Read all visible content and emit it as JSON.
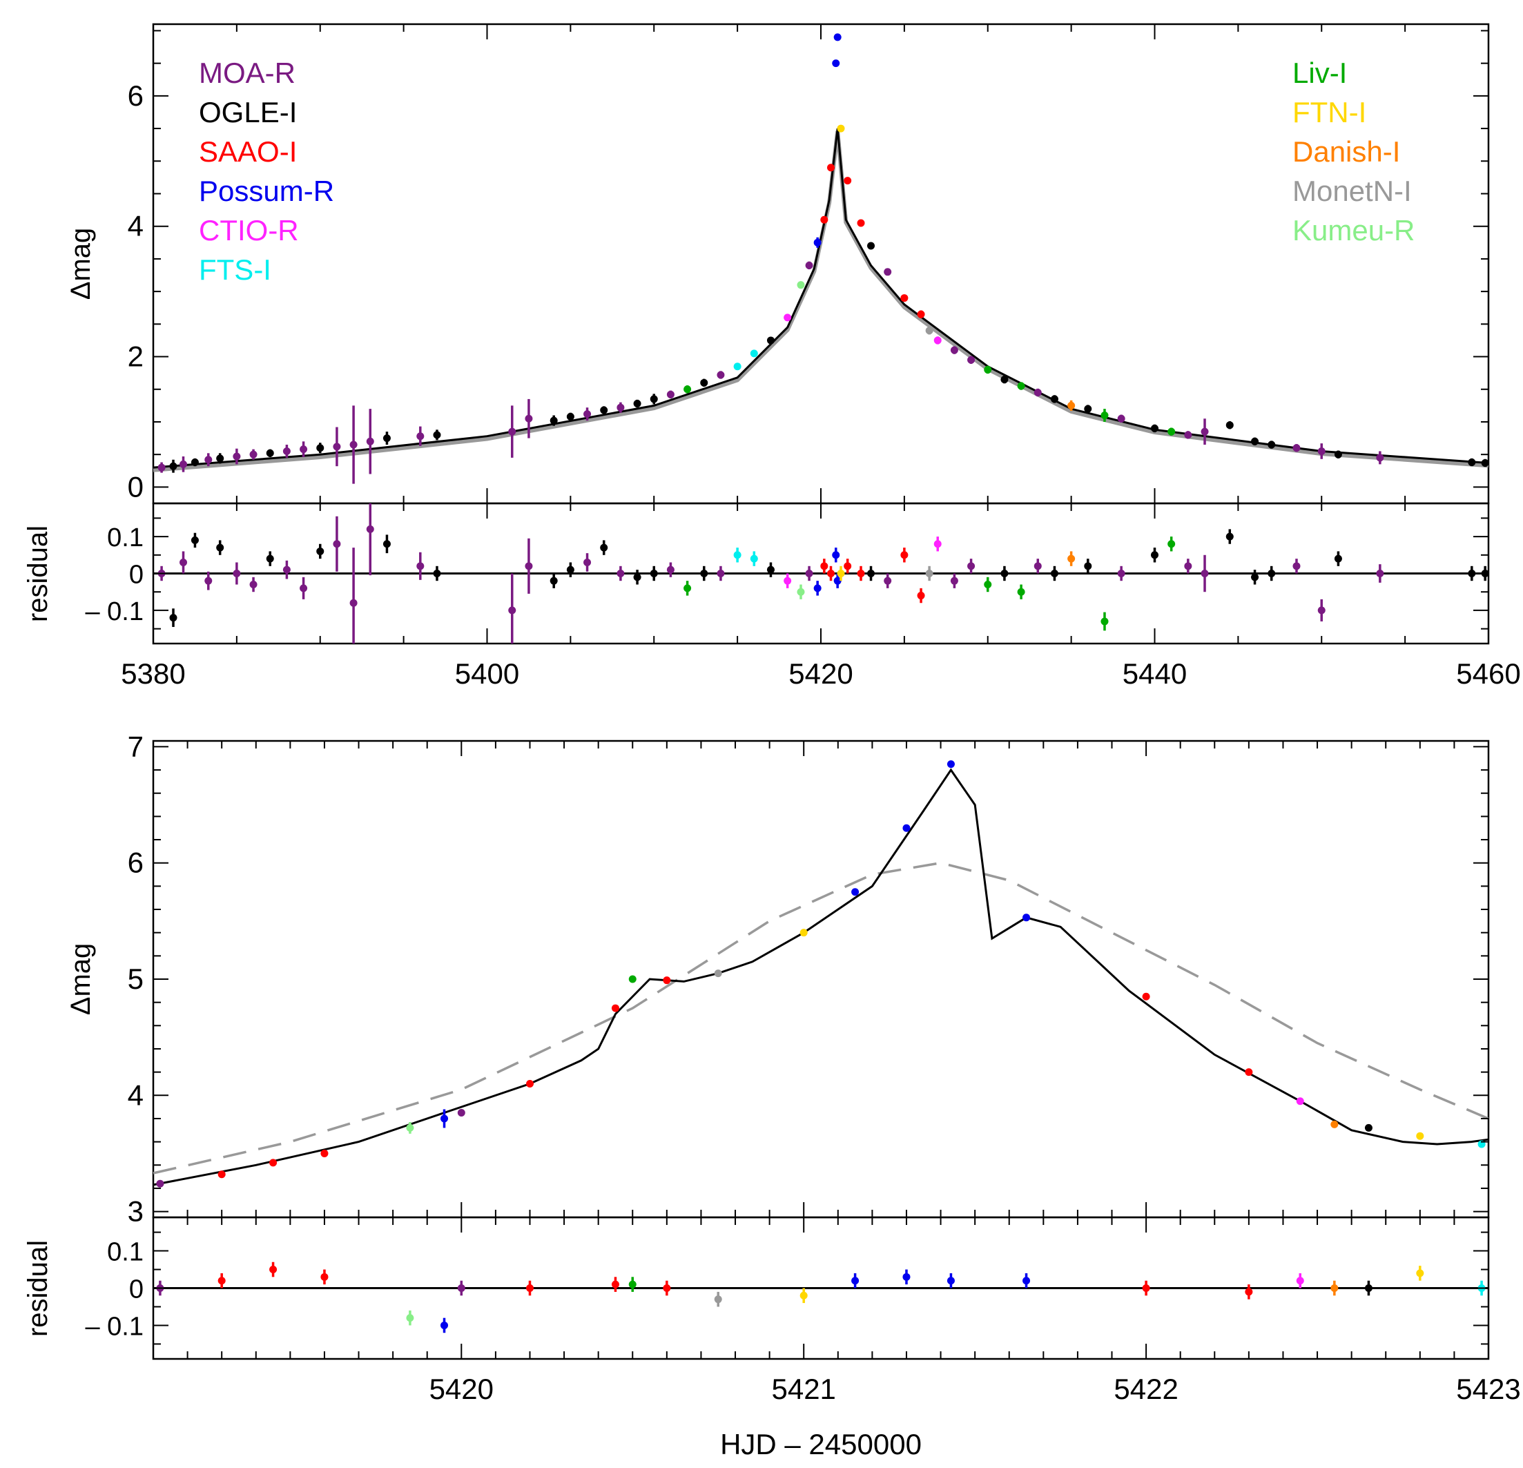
{
  "chart_data": [
    {
      "id": "top",
      "type": "scatter",
      "title": "",
      "ylabel": "Δmag",
      "residual_ylabel": "residual",
      "xlim": [
        5380,
        5460
      ],
      "ylim": [
        -0.25,
        7.1
      ],
      "residual_ylim": [
        -0.19,
        0.19
      ],
      "x_ticks": [
        "5380",
        "5400",
        "5420",
        "5440",
        "5460"
      ],
      "x_tick_values": [
        5380,
        5400,
        5420,
        5440,
        5460
      ],
      "y_ticks": [
        "0",
        "2",
        "4",
        "6"
      ],
      "y_tick_values": [
        0,
        2,
        4,
        6
      ],
      "residual_ticks": [
        "0.1",
        "0",
        "– 0.1"
      ],
      "residual_tick_values": [
        0.1,
        0,
        -0.1
      ],
      "grid": false,
      "legend_left": [
        "MOA-R",
        "OGLE-I",
        "SAAO-I",
        "Possum-R",
        "CTIO-R",
        "FTS-I"
      ],
      "legend_right": [
        "Liv-I",
        "FTN-I",
        "Danish-I",
        "MonetN-I",
        "Kumeu-R"
      ],
      "legend_placement": "top-left and top-right",
      "model": {
        "peak_x": 5421.0,
        "baseline": [
          [
            5380,
            0.3
          ],
          [
            5390,
            0.5
          ],
          [
            5400,
            0.78
          ],
          [
            5410,
            1.25
          ],
          [
            5415,
            1.68
          ],
          [
            5418,
            2.45
          ],
          [
            5419.6,
            3.35
          ],
          [
            5420.5,
            4.4
          ],
          [
            5421.0,
            5.5
          ],
          [
            5421.5,
            4.1
          ],
          [
            5423,
            3.4
          ],
          [
            5425,
            2.8
          ],
          [
            5430,
            1.85
          ],
          [
            5435,
            1.2
          ],
          [
            5440,
            0.88
          ],
          [
            5450,
            0.55
          ],
          [
            5460,
            0.37
          ]
        ]
      },
      "points": [
        {
          "x": 5380.5,
          "y": 0.3,
          "e": 0.08,
          "r": 0.0,
          "s": "MOA-R"
        },
        {
          "x": 5381.2,
          "y": 0.32,
          "e": 0.1,
          "r": -0.12,
          "s": "OGLE-I"
        },
        {
          "x": 5381.8,
          "y": 0.35,
          "e": 0.12,
          "r": 0.03,
          "s": "MOA-R"
        },
        {
          "x": 5382.5,
          "y": 0.38,
          "e": 0.06,
          "r": 0.09,
          "s": "OGLE-I"
        },
        {
          "x": 5383.3,
          "y": 0.42,
          "e": 0.1,
          "r": -0.02,
          "s": "MOA-R"
        },
        {
          "x": 5384.0,
          "y": 0.44,
          "e": 0.08,
          "r": 0.07,
          "s": "OGLE-I"
        },
        {
          "x": 5385.0,
          "y": 0.47,
          "e": 0.12,
          "r": 0.0,
          "s": "MOA-R"
        },
        {
          "x": 5386.0,
          "y": 0.5,
          "e": 0.08,
          "r": -0.03,
          "s": "MOA-R"
        },
        {
          "x": 5387.0,
          "y": 0.52,
          "e": 0.06,
          "r": 0.04,
          "s": "OGLE-I"
        },
        {
          "x": 5388.0,
          "y": 0.55,
          "e": 0.1,
          "r": 0.01,
          "s": "MOA-R"
        },
        {
          "x": 5389.0,
          "y": 0.58,
          "e": 0.12,
          "r": -0.04,
          "s": "MOA-R"
        },
        {
          "x": 5390.0,
          "y": 0.6,
          "e": 0.08,
          "r": 0.06,
          "s": "OGLE-I"
        },
        {
          "x": 5391.0,
          "y": 0.62,
          "e": 0.3,
          "r": 0.08,
          "s": "MOA-R"
        },
        {
          "x": 5392.0,
          "y": 0.65,
          "e": 0.6,
          "r": -0.08,
          "s": "MOA-R"
        },
        {
          "x": 5393.0,
          "y": 0.7,
          "e": 0.5,
          "r": 0.12,
          "s": "MOA-R"
        },
        {
          "x": 5394.0,
          "y": 0.75,
          "e": 0.1,
          "r": 0.08,
          "s": "OGLE-I"
        },
        {
          "x": 5396.0,
          "y": 0.78,
          "e": 0.15,
          "r": 0.02,
          "s": "MOA-R"
        },
        {
          "x": 5397.0,
          "y": 0.8,
          "e": 0.08,
          "r": 0.0,
          "s": "OGLE-I"
        },
        {
          "x": 5401.5,
          "y": 0.85,
          "e": 0.4,
          "r": -0.1,
          "s": "MOA-R"
        },
        {
          "x": 5402.5,
          "y": 1.05,
          "e": 0.3,
          "r": 0.02,
          "s": "MOA-R"
        },
        {
          "x": 5404.0,
          "y": 1.02,
          "e": 0.08,
          "r": -0.02,
          "s": "OGLE-I"
        },
        {
          "x": 5405.0,
          "y": 1.08,
          "e": 0.06,
          "r": 0.01,
          "s": "OGLE-I"
        },
        {
          "x": 5406.0,
          "y": 1.12,
          "e": 0.1,
          "r": 0.03,
          "s": "MOA-R"
        },
        {
          "x": 5407.0,
          "y": 1.18,
          "e": 0.06,
          "r": 0.07,
          "s": "OGLE-I"
        },
        {
          "x": 5408.0,
          "y": 1.22,
          "e": 0.08,
          "r": 0.0,
          "s": "MOA-R"
        },
        {
          "x": 5409.0,
          "y": 1.28,
          "e": 0.06,
          "r": -0.01,
          "s": "OGLE-I"
        },
        {
          "x": 5410.0,
          "y": 1.35,
          "e": 0.08,
          "r": 0.0,
          "s": "OGLE-I"
        },
        {
          "x": 5411.0,
          "y": 1.42,
          "e": 0.06,
          "r": 0.01,
          "s": "MOA-R"
        },
        {
          "x": 5412.0,
          "y": 1.5,
          "e": 0.06,
          "r": -0.04,
          "s": "Liv-I"
        },
        {
          "x": 5413.0,
          "y": 1.6,
          "e": 0.06,
          "r": 0.0,
          "s": "OGLE-I"
        },
        {
          "x": 5414.0,
          "y": 1.72,
          "e": 0.06,
          "r": 0.0,
          "s": "MOA-R"
        },
        {
          "x": 5415.0,
          "y": 1.85,
          "e": 0.05,
          "r": 0.05,
          "s": "FTS-I"
        },
        {
          "x": 5416.0,
          "y": 2.05,
          "e": 0.05,
          "r": 0.04,
          "s": "FTS-I"
        },
        {
          "x": 5417.0,
          "y": 2.25,
          "e": 0.05,
          "r": 0.01,
          "s": "OGLE-I"
        },
        {
          "x": 5418.0,
          "y": 2.6,
          "e": 0.05,
          "r": -0.02,
          "s": "CTIO-R"
        },
        {
          "x": 5418.8,
          "y": 3.1,
          "e": 0.05,
          "r": -0.05,
          "s": "Kumeu-R"
        },
        {
          "x": 5419.3,
          "y": 3.4,
          "e": 0.06,
          "r": 0.0,
          "s": "MOA-R"
        },
        {
          "x": 5419.8,
          "y": 3.75,
          "e": 0.08,
          "r": -0.04,
          "s": "Possum-R"
        },
        {
          "x": 5420.2,
          "y": 4.1,
          "e": 0.04,
          "r": 0.02,
          "s": "SAAO-I"
        },
        {
          "x": 5420.6,
          "y": 4.9,
          "e": 0.04,
          "r": 0.0,
          "s": "SAAO-I"
        },
        {
          "x": 5420.9,
          "y": 6.5,
          "e": 0.04,
          "r": 0.05,
          "s": "Possum-R"
        },
        {
          "x": 5421.0,
          "y": 6.9,
          "e": 0.03,
          "r": -0.02,
          "s": "Possum-R"
        },
        {
          "x": 5421.2,
          "y": 5.5,
          "e": 0.04,
          "r": 0.0,
          "s": "FTN-I"
        },
        {
          "x": 5421.6,
          "y": 4.7,
          "e": 0.04,
          "r": 0.02,
          "s": "SAAO-I"
        },
        {
          "x": 5422.4,
          "y": 4.05,
          "e": 0.04,
          "r": 0.0,
          "s": "SAAO-I"
        },
        {
          "x": 5423.0,
          "y": 3.7,
          "e": 0.04,
          "r": 0.0,
          "s": "OGLE-I"
        },
        {
          "x": 5424.0,
          "y": 3.3,
          "e": 0.05,
          "r": -0.02,
          "s": "MOA-R"
        },
        {
          "x": 5425.0,
          "y": 2.9,
          "e": 0.05,
          "r": 0.05,
          "s": "SAAO-I"
        },
        {
          "x": 5426.0,
          "y": 2.65,
          "e": 0.06,
          "r": -0.06,
          "s": "SAAO-I"
        },
        {
          "x": 5426.5,
          "y": 2.4,
          "e": 0.06,
          "r": 0.0,
          "s": "MonetN-I"
        },
        {
          "x": 5427.0,
          "y": 2.25,
          "e": 0.06,
          "r": 0.08,
          "s": "CTIO-R"
        },
        {
          "x": 5428.0,
          "y": 2.1,
          "e": 0.06,
          "r": -0.02,
          "s": "MOA-R"
        },
        {
          "x": 5429.0,
          "y": 1.95,
          "e": 0.06,
          "r": 0.02,
          "s": "MOA-R"
        },
        {
          "x": 5430.0,
          "y": 1.8,
          "e": 0.06,
          "r": -0.03,
          "s": "Liv-I"
        },
        {
          "x": 5431.0,
          "y": 1.65,
          "e": 0.06,
          "r": 0.0,
          "s": "OGLE-I"
        },
        {
          "x": 5432.0,
          "y": 1.55,
          "e": 0.06,
          "r": -0.05,
          "s": "Liv-I"
        },
        {
          "x": 5433.0,
          "y": 1.45,
          "e": 0.06,
          "r": 0.02,
          "s": "MOA-R"
        },
        {
          "x": 5434.0,
          "y": 1.35,
          "e": 0.06,
          "r": 0.0,
          "s": "OGLE-I"
        },
        {
          "x": 5435.0,
          "y": 1.25,
          "e": 0.08,
          "r": 0.04,
          "s": "Danish-I"
        },
        {
          "x": 5436.0,
          "y": 1.2,
          "e": 0.06,
          "r": 0.02,
          "s": "OGLE-I"
        },
        {
          "x": 5437.0,
          "y": 1.1,
          "e": 0.1,
          "r": -0.13,
          "s": "Liv-I"
        },
        {
          "x": 5438.0,
          "y": 1.05,
          "e": 0.06,
          "r": 0.0,
          "s": "MOA-R"
        },
        {
          "x": 5440.0,
          "y": 0.9,
          "e": 0.06,
          "r": 0.05,
          "s": "OGLE-I"
        },
        {
          "x": 5441.0,
          "y": 0.85,
          "e": 0.06,
          "r": 0.08,
          "s": "Liv-I"
        },
        {
          "x": 5442.0,
          "y": 0.8,
          "e": 0.06,
          "r": 0.02,
          "s": "MOA-R"
        },
        {
          "x": 5443.0,
          "y": 0.85,
          "e": 0.2,
          "r": 0.0,
          "s": "MOA-R"
        },
        {
          "x": 5444.5,
          "y": 0.95,
          "e": 0.06,
          "r": 0.1,
          "s": "OGLE-I"
        },
        {
          "x": 5446.0,
          "y": 0.7,
          "e": 0.06,
          "r": -0.01,
          "s": "OGLE-I"
        },
        {
          "x": 5447.0,
          "y": 0.65,
          "e": 0.06,
          "r": 0.0,
          "s": "OGLE-I"
        },
        {
          "x": 5448.5,
          "y": 0.6,
          "e": 0.06,
          "r": 0.02,
          "s": "MOA-R"
        },
        {
          "x": 5450.0,
          "y": 0.55,
          "e": 0.12,
          "r": -0.1,
          "s": "MOA-R"
        },
        {
          "x": 5451.0,
          "y": 0.5,
          "e": 0.06,
          "r": 0.04,
          "s": "OGLE-I"
        },
        {
          "x": 5453.5,
          "y": 0.45,
          "e": 0.1,
          "r": 0.0,
          "s": "MOA-R"
        },
        {
          "x": 5459.0,
          "y": 0.38,
          "e": 0.06,
          "r": 0.0,
          "s": "OGLE-I"
        },
        {
          "x": 5459.8,
          "y": 0.37,
          "e": 0.06,
          "r": 0.0,
          "s": "OGLE-I"
        }
      ]
    },
    {
      "id": "bottom",
      "type": "scatter",
      "title": "",
      "ylabel": "Δmag",
      "residual_ylabel": "residual",
      "xlabel": "HJD – 2450000",
      "xlim": [
        5419.1,
        5423.0
      ],
      "ylim": [
        2.95,
        7.05
      ],
      "residual_ylim": [
        -0.19,
        0.19
      ],
      "x_ticks": [
        "5420",
        "5421",
        "5422",
        "5423"
      ],
      "x_tick_values": [
        5420,
        5421,
        5422,
        5423
      ],
      "y_ticks": [
        "3",
        "4",
        "5",
        "6",
        "7"
      ],
      "y_tick_values": [
        3,
        4,
        5,
        6,
        7
      ],
      "residual_ticks": [
        "0.1",
        "0",
        "– 0.1"
      ],
      "residual_tick_values": [
        0.1,
        0,
        -0.1
      ],
      "grid": false,
      "model": [
        [
          5419.1,
          3.23
        ],
        [
          5419.4,
          3.4
        ],
        [
          5419.7,
          3.6
        ],
        [
          5419.95,
          3.85
        ],
        [
          5420.2,
          4.1
        ],
        [
          5420.35,
          4.3
        ],
        [
          5420.4,
          4.4
        ],
        [
          5420.45,
          4.7
        ],
        [
          5420.55,
          5.0
        ],
        [
          5420.65,
          4.98
        ],
        [
          5420.75,
          5.05
        ],
        [
          5420.85,
          5.15
        ],
        [
          5421.0,
          5.4
        ],
        [
          5421.2,
          5.8
        ],
        [
          5421.35,
          6.45
        ],
        [
          5421.43,
          6.8
        ],
        [
          5421.5,
          6.5
        ],
        [
          5421.55,
          5.35
        ],
        [
          5421.65,
          5.53
        ],
        [
          5421.75,
          5.45
        ],
        [
          5421.95,
          4.9
        ],
        [
          5422.2,
          4.35
        ],
        [
          5422.45,
          3.95
        ],
        [
          5422.6,
          3.7
        ],
        [
          5422.75,
          3.6
        ],
        [
          5422.85,
          3.58
        ],
        [
          5422.95,
          3.6
        ],
        [
          5423.0,
          3.62
        ]
      ],
      "single_lens": [
        [
          5419.1,
          3.33
        ],
        [
          5419.5,
          3.6
        ],
        [
          5420.0,
          4.05
        ],
        [
          5420.5,
          4.75
        ],
        [
          5420.9,
          5.5
        ],
        [
          5421.2,
          5.9
        ],
        [
          5421.4,
          6.0
        ],
        [
          5421.6,
          5.85
        ],
        [
          5421.9,
          5.4
        ],
        [
          5422.2,
          4.95
        ],
        [
          5422.5,
          4.45
        ],
        [
          5422.8,
          4.05
        ],
        [
          5423.0,
          3.8
        ]
      ],
      "points": [
        {
          "x": 5419.12,
          "y": 3.24,
          "e": 0.02,
          "r": 0.0,
          "s": "MOA-R"
        },
        {
          "x": 5419.3,
          "y": 3.32,
          "e": 0.02,
          "r": 0.02,
          "s": "SAAO-I"
        },
        {
          "x": 5419.45,
          "y": 3.42,
          "e": 0.02,
          "r": 0.05,
          "s": "SAAO-I"
        },
        {
          "x": 5419.6,
          "y": 3.5,
          "e": 0.02,
          "r": 0.03,
          "s": "SAAO-I"
        },
        {
          "x": 5419.85,
          "y": 3.72,
          "e": 0.05,
          "r": -0.08,
          "s": "Kumeu-R"
        },
        {
          "x": 5419.95,
          "y": 3.8,
          "e": 0.08,
          "r": -0.1,
          "s": "Possum-R"
        },
        {
          "x": 5420.0,
          "y": 3.85,
          "e": 0.03,
          "r": 0.0,
          "s": "MOA-R"
        },
        {
          "x": 5420.2,
          "y": 4.1,
          "e": 0.02,
          "r": 0.0,
          "s": "SAAO-I"
        },
        {
          "x": 5420.45,
          "y": 4.75,
          "e": 0.02,
          "r": 0.01,
          "s": "SAAO-I"
        },
        {
          "x": 5420.5,
          "y": 5.0,
          "e": 0.02,
          "r": 0.01,
          "s": "Liv-I"
        },
        {
          "x": 5420.6,
          "y": 4.99,
          "e": 0.02,
          "r": 0.0,
          "s": "SAAO-I"
        },
        {
          "x": 5420.75,
          "y": 5.05,
          "e": 0.03,
          "r": -0.03,
          "s": "MonetN-I"
        },
        {
          "x": 5421.0,
          "y": 5.4,
          "e": 0.02,
          "r": -0.02,
          "s": "FTN-I"
        },
        {
          "x": 5421.15,
          "y": 5.75,
          "e": 0.03,
          "r": 0.02,
          "s": "Possum-R"
        },
        {
          "x": 5421.3,
          "y": 6.3,
          "e": 0.03,
          "r": 0.03,
          "s": "Possum-R"
        },
        {
          "x": 5421.43,
          "y": 6.85,
          "e": 0.02,
          "r": 0.02,
          "s": "Possum-R"
        },
        {
          "x": 5421.65,
          "y": 5.53,
          "e": 0.02,
          "r": 0.02,
          "s": "Possum-R"
        },
        {
          "x": 5422.0,
          "y": 4.85,
          "e": 0.02,
          "r": 0.0,
          "s": "SAAO-I"
        },
        {
          "x": 5422.3,
          "y": 4.2,
          "e": 0.02,
          "r": -0.01,
          "s": "SAAO-I"
        },
        {
          "x": 5422.45,
          "y": 3.95,
          "e": 0.02,
          "r": 0.02,
          "s": "CTIO-R"
        },
        {
          "x": 5422.55,
          "y": 3.75,
          "e": 0.03,
          "r": 0.0,
          "s": "Danish-I"
        },
        {
          "x": 5422.65,
          "y": 3.72,
          "e": 0.02,
          "r": 0.0,
          "s": "OGLE-I"
        },
        {
          "x": 5422.8,
          "y": 3.65,
          "e": 0.02,
          "r": 0.04,
          "s": "FTN-I"
        },
        {
          "x": 5422.98,
          "y": 3.58,
          "e": 0.02,
          "r": 0.0,
          "s": "FTS-I"
        }
      ]
    }
  ],
  "series_colors": {
    "MOA-R": "#7a1a82",
    "OGLE-I": "#000000",
    "SAAO-I": "#ff0000",
    "Possum-R": "#0000ee",
    "CTIO-R": "#ff22ff",
    "FTS-I": "#00eeee",
    "Liv-I": "#00aa00",
    "FTN-I": "#ffd700",
    "Danish-I": "#ff8000",
    "MonetN-I": "#999999",
    "Kumeu-R": "#88ee88"
  }
}
